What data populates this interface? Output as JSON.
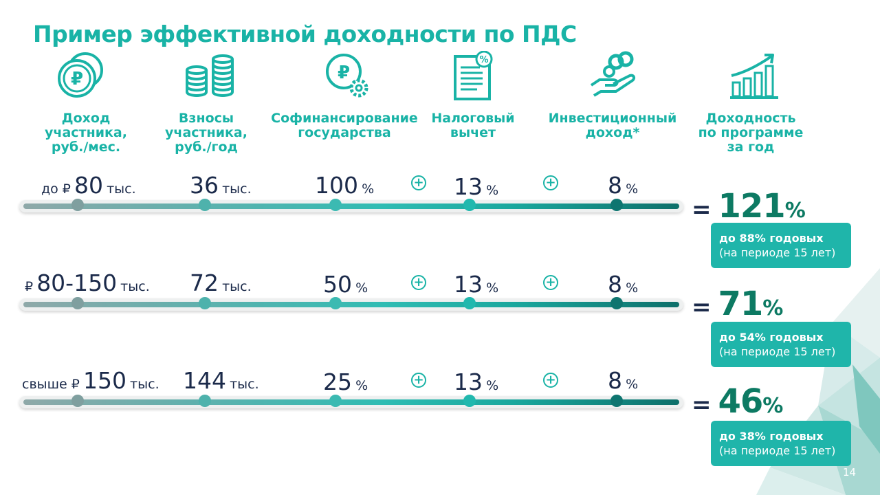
{
  "title": "Пример эффективной доходности по ПДС",
  "columns": [
    {
      "icon": "coins-ruble-icon",
      "label": "Доход\nучастника,\nруб./мес."
    },
    {
      "icon": "coin-stacks-icon",
      "label": "Взносы\nучастника,\nруб./год"
    },
    {
      "icon": "ruble-gear-icon",
      "label": "Софинансирование\nгосударства"
    },
    {
      "icon": "tax-document-percent-icon",
      "label": "Налоговый\nвычет"
    },
    {
      "icon": "hand-coins-icon",
      "label": "Инвестиционный\nдоход*"
    },
    {
      "icon": "growth-chart-icon",
      "label": "Доходность\nпо программе\nза год"
    }
  ],
  "rows": [
    {
      "income_prefix": "до ₽",
      "income_value": "80",
      "income_unit": "тыс.",
      "contrib_value": "36",
      "contrib_unit": "тыс.",
      "cofin_value": "100",
      "cofin_unit": "%",
      "tax_value": "13",
      "tax_unit": "%",
      "invest_value": "8",
      "invest_unit": "%",
      "result_eq": "=",
      "result_value": "121",
      "result_unit": "%",
      "box_line1": "до 88% годовых",
      "box_line2": "(на периоде 15 лет)"
    },
    {
      "income_prefix": "₽",
      "income_value": "80-150",
      "income_unit": "тыс.",
      "contrib_value": "72",
      "contrib_unit": "тыс.",
      "cofin_value": "50",
      "cofin_unit": "%",
      "tax_value": "13",
      "tax_unit": "%",
      "invest_value": "8",
      "invest_unit": "%",
      "result_eq": "=",
      "result_value": "71",
      "result_unit": "%",
      "box_line1": "до 54% годовых",
      "box_line2": "(на периоде 15 лет)"
    },
    {
      "income_prefix": "свыше ₽",
      "income_value": "150",
      "income_unit": "тыс.",
      "contrib_value": "144",
      "contrib_unit": "тыс.",
      "cofin_value": "25",
      "cofin_unit": "%",
      "tax_value": "13",
      "tax_unit": "%",
      "invest_value": "8",
      "invest_unit": "%",
      "result_eq": "=",
      "result_value": "46",
      "result_unit": "%",
      "box_line1": "до 38% годовых",
      "box_line2": "(на периоде 15 лет)"
    }
  ],
  "plus_symbol": "+",
  "page_number": "14",
  "colors": {
    "accent": "#19b3a6",
    "dark_text": "#1b2a4a",
    "result_green": "#0d7a63",
    "box_bg": "#1fb5aa"
  }
}
